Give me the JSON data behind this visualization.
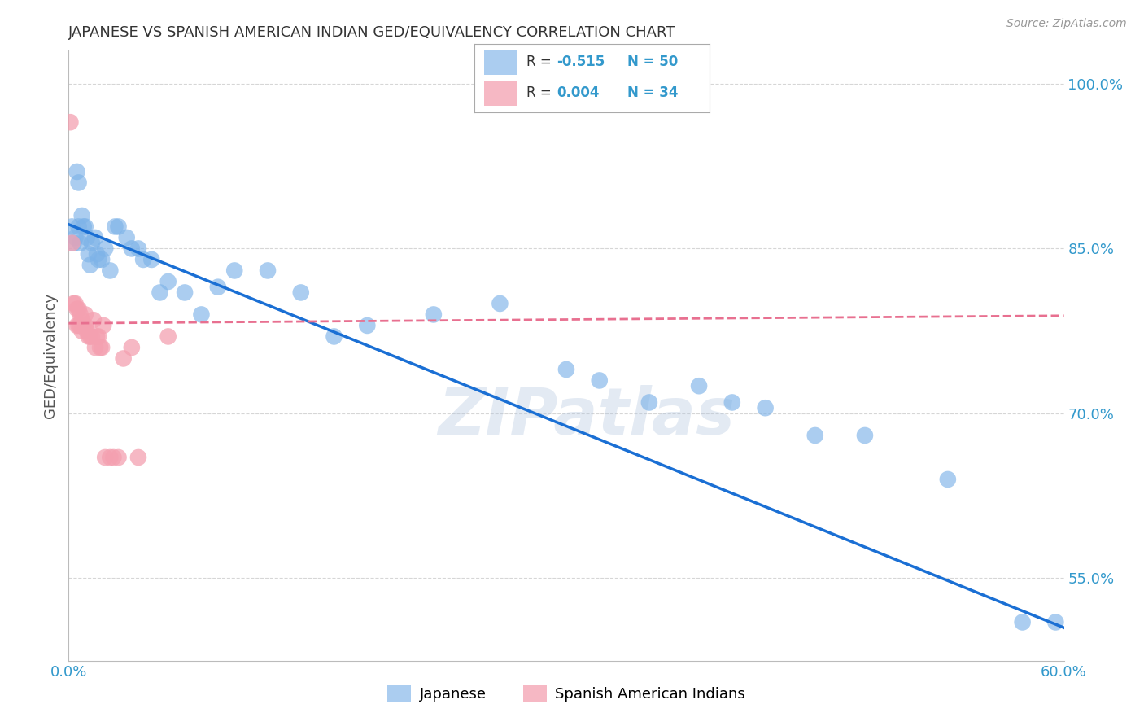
{
  "title": "JAPANESE VS SPANISH AMERICAN INDIAN GED/EQUIVALENCY CORRELATION CHART",
  "source": "Source: ZipAtlas.com",
  "ylabel": "GED/Equivalency",
  "watermark": "ZIPatlas",
  "legend_R1": "R = -0.515",
  "legend_N1": "N = 50",
  "legend_R2": "R = 0.004",
  "legend_N2": "N = 34",
  "legend_label1": "Japanese",
  "legend_label2": "Spanish American Indians",
  "xlim": [
    0.0,
    0.6
  ],
  "ylim": [
    0.475,
    1.03
  ],
  "x_ticks": [
    0.0,
    0.1,
    0.2,
    0.3,
    0.4,
    0.5,
    0.6
  ],
  "x_tick_labels": [
    "0.0%",
    "",
    "",
    "",
    "",
    "",
    "60.0%"
  ],
  "y_ticks": [
    0.55,
    0.7,
    0.85,
    1.0
  ],
  "y_tick_labels": [
    "55.0%",
    "70.0%",
    "85.0%",
    "100.0%"
  ],
  "blue_scatter_color": "#7EB3E8",
  "pink_scatter_color": "#F4A0B0",
  "blue_line_color": "#1A6FD4",
  "pink_line_color": "#E87090",
  "grid_color": "#CCCCCC",
  "axis_tick_color": "#3399CC",
  "japanese_x": [
    0.002,
    0.003,
    0.004,
    0.005,
    0.006,
    0.006,
    0.007,
    0.008,
    0.009,
    0.01,
    0.011,
    0.012,
    0.013,
    0.014,
    0.016,
    0.017,
    0.018,
    0.02,
    0.022,
    0.025,
    0.028,
    0.03,
    0.035,
    0.038,
    0.042,
    0.045,
    0.05,
    0.055,
    0.06,
    0.07,
    0.08,
    0.09,
    0.1,
    0.12,
    0.14,
    0.16,
    0.18,
    0.22,
    0.26,
    0.3,
    0.32,
    0.35,
    0.38,
    0.4,
    0.42,
    0.45,
    0.48,
    0.53,
    0.575,
    0.595
  ],
  "japanese_y": [
    0.87,
    0.855,
    0.86,
    0.92,
    0.91,
    0.87,
    0.855,
    0.88,
    0.87,
    0.87,
    0.86,
    0.845,
    0.835,
    0.855,
    0.86,
    0.845,
    0.84,
    0.84,
    0.85,
    0.83,
    0.87,
    0.87,
    0.86,
    0.85,
    0.85,
    0.84,
    0.84,
    0.81,
    0.82,
    0.81,
    0.79,
    0.815,
    0.83,
    0.83,
    0.81,
    0.77,
    0.78,
    0.79,
    0.8,
    0.74,
    0.73,
    0.71,
    0.725,
    0.71,
    0.705,
    0.68,
    0.68,
    0.64,
    0.51,
    0.51
  ],
  "spanish_x": [
    0.001,
    0.002,
    0.003,
    0.004,
    0.005,
    0.005,
    0.006,
    0.006,
    0.007,
    0.007,
    0.008,
    0.008,
    0.009,
    0.01,
    0.01,
    0.011,
    0.012,
    0.013,
    0.014,
    0.015,
    0.016,
    0.017,
    0.018,
    0.019,
    0.02,
    0.021,
    0.022,
    0.025,
    0.027,
    0.03,
    0.033,
    0.038,
    0.042,
    0.06
  ],
  "spanish_y": [
    0.965,
    0.855,
    0.8,
    0.8,
    0.795,
    0.78,
    0.795,
    0.78,
    0.79,
    0.78,
    0.785,
    0.775,
    0.78,
    0.79,
    0.78,
    0.775,
    0.77,
    0.77,
    0.77,
    0.785,
    0.76,
    0.77,
    0.77,
    0.76,
    0.76,
    0.78,
    0.66,
    0.66,
    0.66,
    0.66,
    0.75,
    0.76,
    0.66,
    0.77
  ],
  "blue_line_x0": 0.0,
  "blue_line_y0": 0.872,
  "blue_line_x1": 0.6,
  "blue_line_y1": 0.505,
  "pink_line_x0": 0.0,
  "pink_line_y0": 0.782,
  "pink_line_x1": 0.6,
  "pink_line_y1": 0.789
}
